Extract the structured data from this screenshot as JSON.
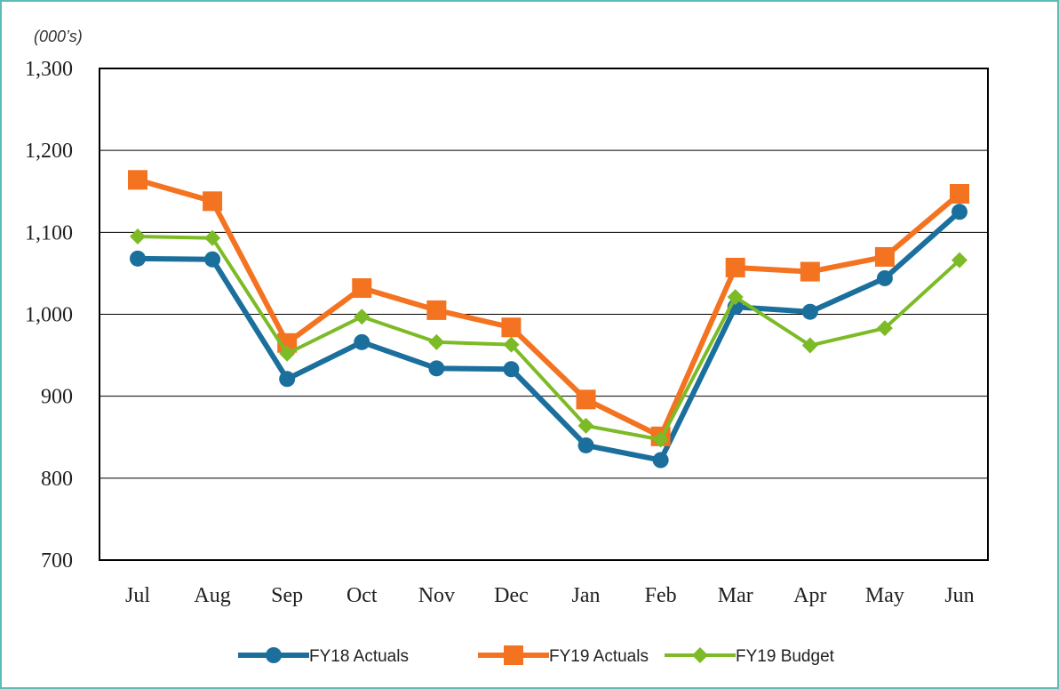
{
  "chart_data": {
    "type": "line",
    "unit_note": "(000’s)",
    "categories": [
      "Jul",
      "Aug",
      "Sep",
      "Oct",
      "Nov",
      "Dec",
      "Jan",
      "Feb",
      "Mar",
      "Apr",
      "May",
      "Jun"
    ],
    "series": [
      {
        "name": "FY18 Actuals",
        "color": "#1b6f9c",
        "marker": "circle",
        "values": [
          1068,
          1067,
          921,
          966,
          934,
          933,
          840,
          822,
          1009,
          1003,
          1044,
          1125
        ]
      },
      {
        "name": "FY19 Actuals",
        "color": "#f47321",
        "marker": "square",
        "values": [
          1164,
          1138,
          965,
          1032,
          1005,
          984,
          896,
          851,
          1057,
          1052,
          1070,
          1147
        ]
      },
      {
        "name": "FY19 Budget",
        "color": "#7cbb26",
        "marker": "diamond",
        "values": [
          1095,
          1093,
          952,
          997,
          966,
          963,
          864,
          847,
          1021,
          962,
          983,
          1066
        ]
      }
    ],
    "ylim": [
      700,
      1300
    ],
    "yticks": [
      700,
      800,
      900,
      {
        "value": 1000,
        "label": "1,000"
      },
      {
        "value": 1100,
        "label": "1,100"
      },
      {
        "value": 1200,
        "label": "1,200"
      },
      {
        "value": 1300,
        "label": "1,300"
      }
    ],
    "grid": true,
    "legend": "bottom"
  }
}
